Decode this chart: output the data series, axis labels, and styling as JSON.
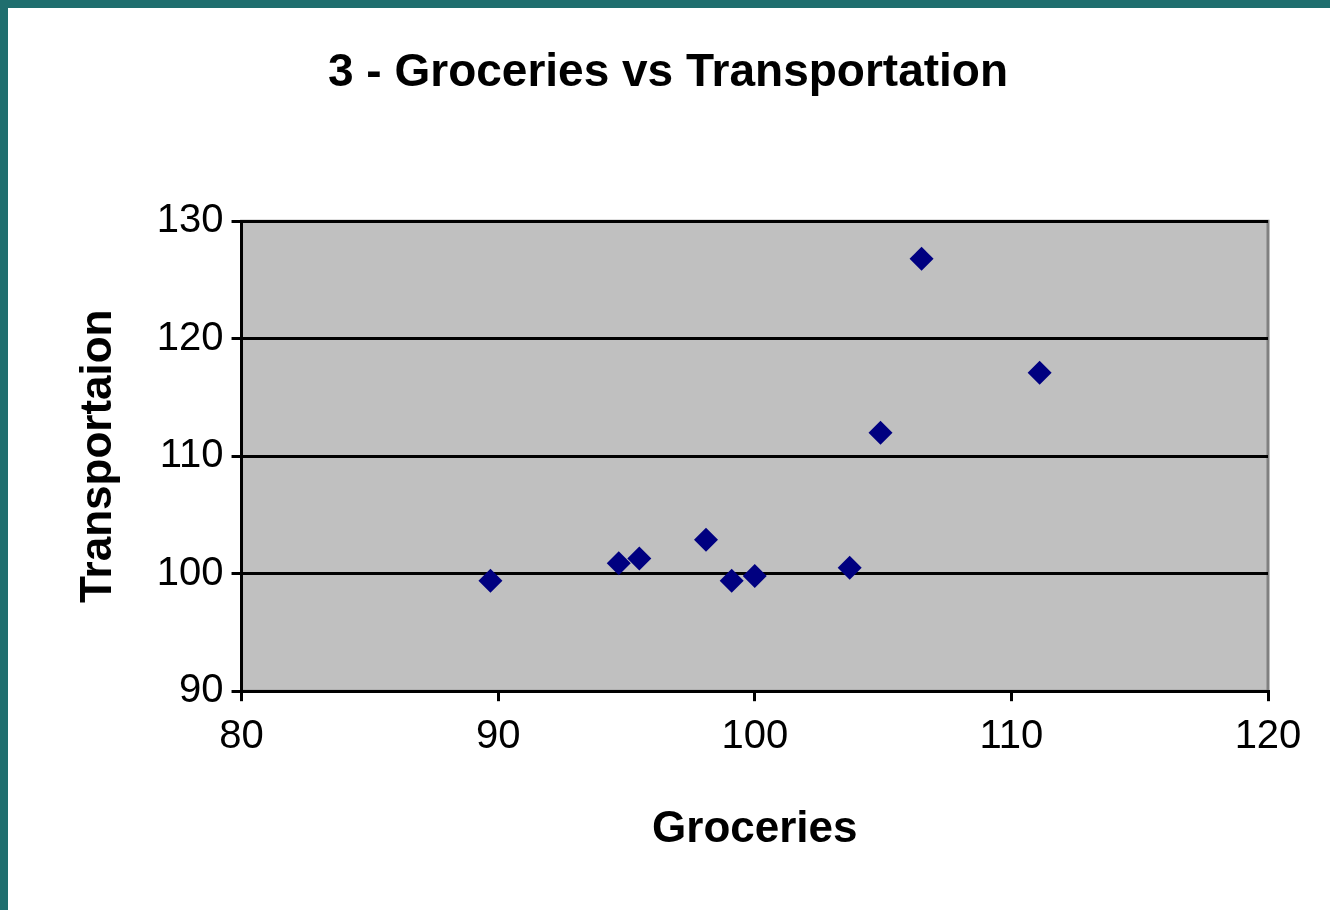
{
  "chart_data": {
    "type": "scatter",
    "title": "3 - Groceries vs Transportation",
    "xlabel": "Groceries",
    "ylabel": "Transportaion",
    "series": [
      {
        "color": "#000080",
        "x": [
          89.7,
          94.7,
          95.5,
          98.1,
          99.1,
          100.0,
          103.7,
          104.9,
          106.5,
          111.1
        ],
        "values": [
          99.4,
          100.9,
          101.3,
          102.9,
          99.4,
          99.8,
          100.5,
          112.0,
          126.8,
          117.1
        ]
      }
    ],
    "xlim": [
      80,
      120
    ],
    "ylim": [
      90,
      130
    ],
    "xticks": [
      80,
      90,
      100,
      110,
      120
    ],
    "yticks": [
      90,
      100,
      110,
      120,
      130
    ],
    "grid": "y",
    "marker": "diamond"
  }
}
